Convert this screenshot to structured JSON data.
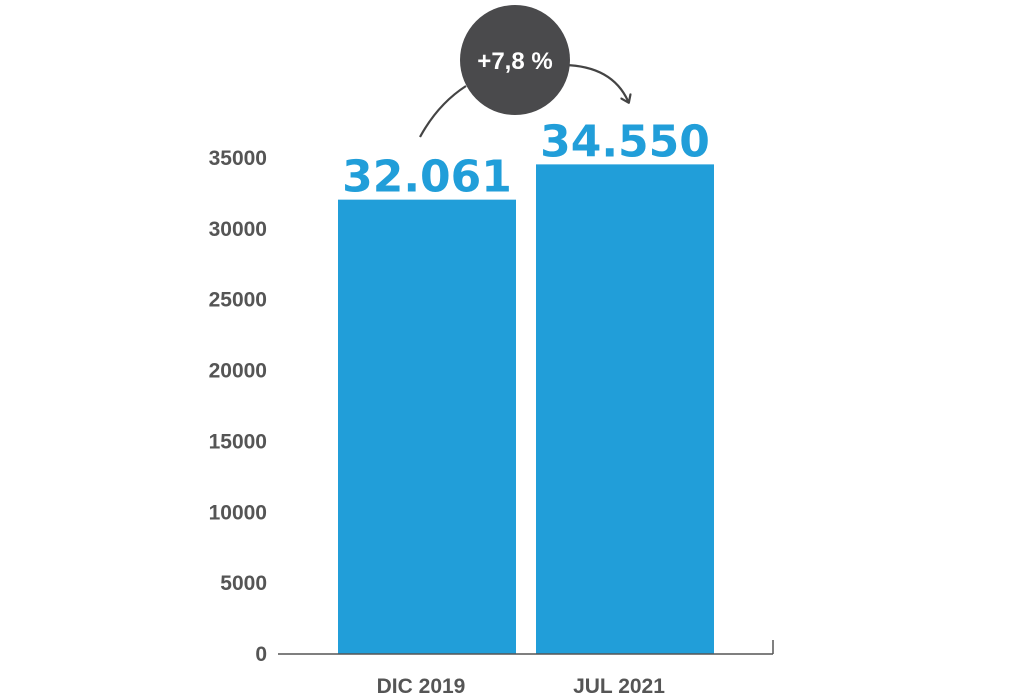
{
  "chart_data": {
    "type": "bar",
    "categories": [
      "DIC 2019",
      "JUL 2021"
    ],
    "values": [
      32061,
      34550
    ],
    "value_labels": [
      "32.061",
      "34.550"
    ],
    "yticks": [
      0,
      5000,
      10000,
      15000,
      20000,
      25000,
      30000,
      35000
    ],
    "ylim": [
      0,
      35000
    ],
    "title": "",
    "xlabel": "",
    "ylabel": "",
    "grid": false,
    "annotation": "+7,8 %"
  },
  "colors": {
    "bar": "#219ed9",
    "value_label": "#219ed9",
    "tick_label": "#555555",
    "axis": "#555555",
    "badge": "#4a4a4c",
    "badge_text": "#ffffff",
    "arrow": "#444444"
  }
}
